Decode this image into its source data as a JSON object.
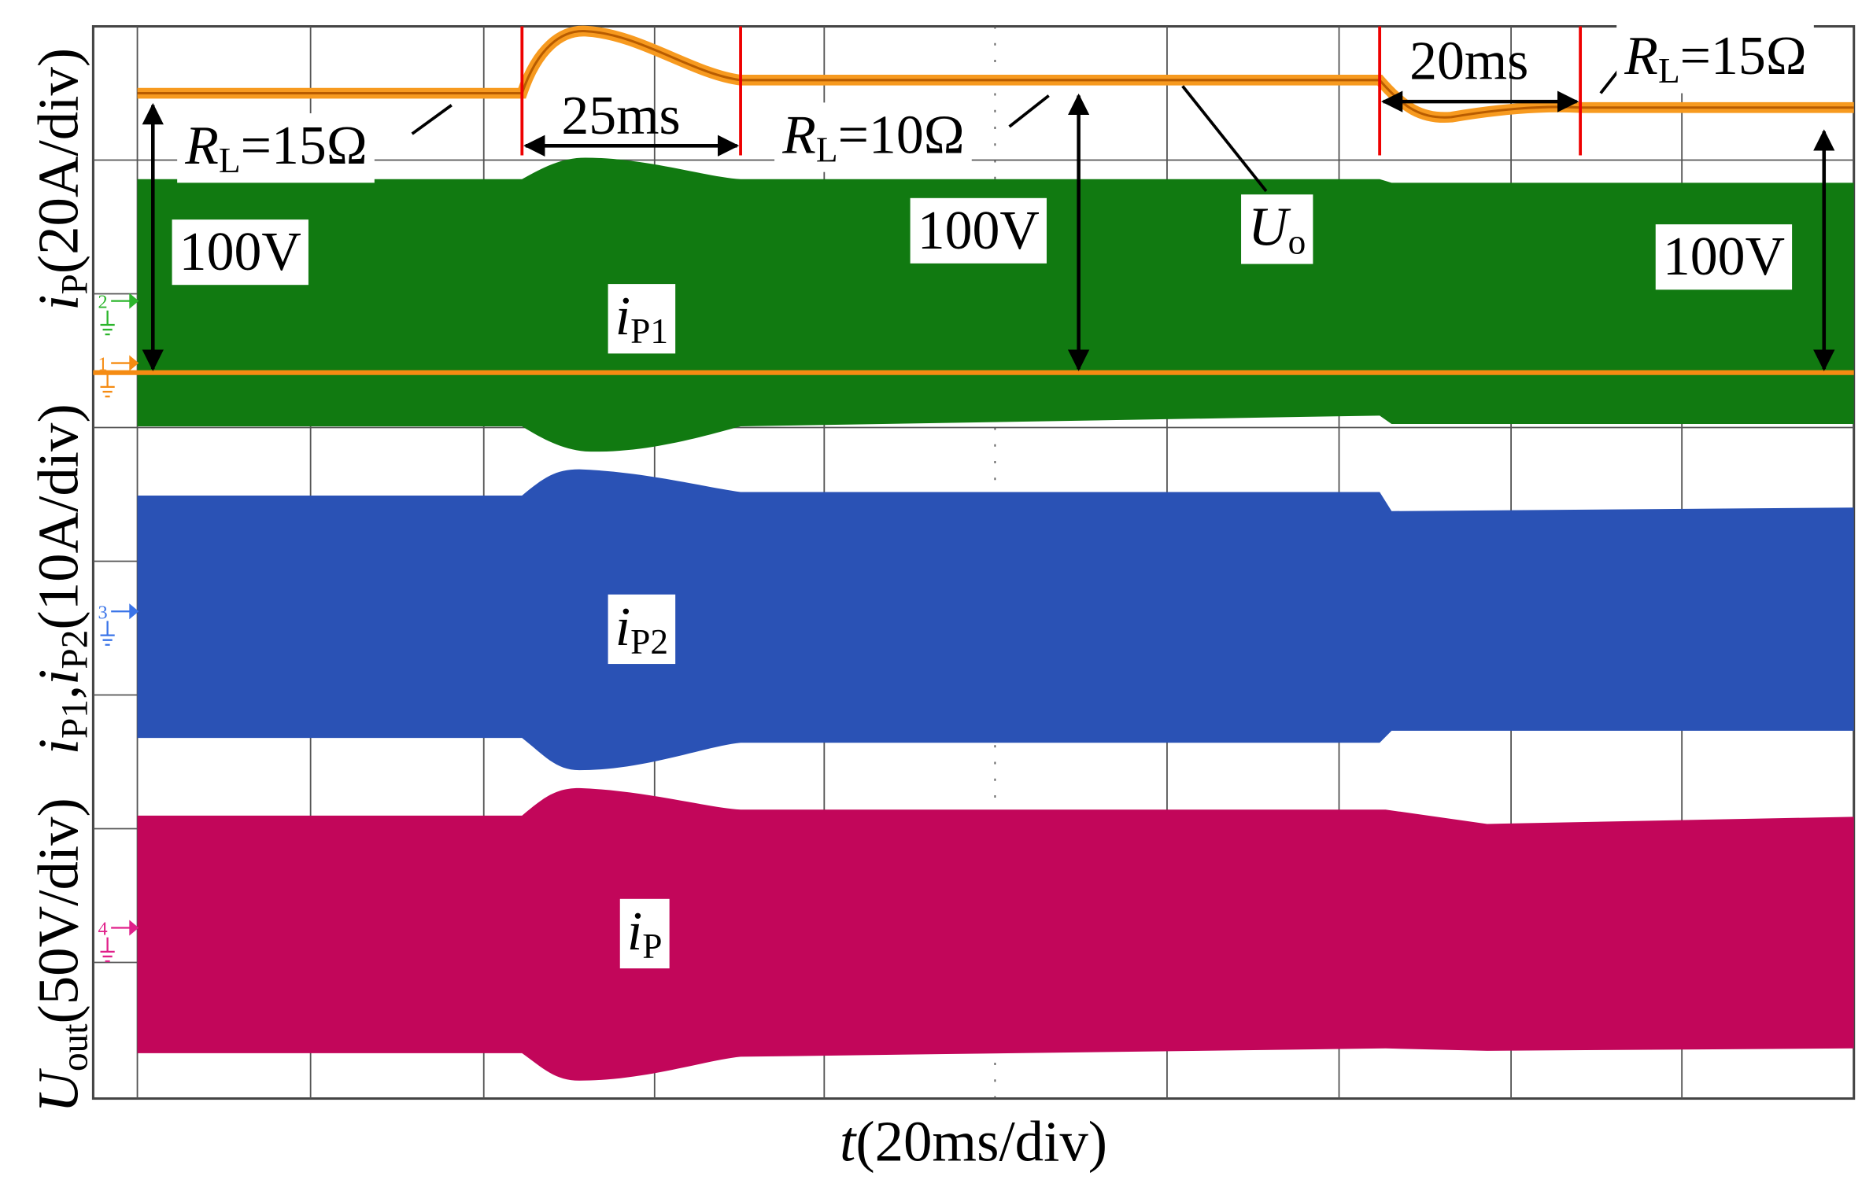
{
  "x_axis_label": [
    {
      "text": "t",
      "style": "italic"
    },
    {
      "text": "(20ms/div)"
    }
  ],
  "y_axis_labels": [
    [
      {
        "text": "U",
        "style": "italic"
      },
      {
        "text": "out",
        "style": "sub"
      },
      {
        "text": "(50V/div)"
      }
    ],
    [
      {
        "text": "i",
        "style": "italic"
      },
      {
        "text": "P1",
        "style": "sub"
      },
      {
        "text": ","
      },
      {
        "text": "i",
        "style": "italic"
      },
      {
        "text": "P2",
        "style": "sub"
      },
      {
        "text": "(10A/div)"
      }
    ],
    [
      {
        "text": "i",
        "style": "italic"
      },
      {
        "text": "P",
        "style": "sub"
      },
      {
        "text": "(20A/div)"
      }
    ]
  ],
  "channel_markers": [
    "2",
    "1",
    "3",
    "4"
  ],
  "annotations": [
    [
      {
        "text": "R",
        "style": "italic"
      },
      {
        "text": "L",
        "style": "sub"
      },
      {
        "text": "=15Ω"
      }
    ],
    [
      {
        "text": "25ms"
      }
    ],
    [
      {
        "text": "R",
        "style": "italic"
      },
      {
        "text": "L",
        "style": "sub"
      },
      {
        "text": "=10Ω"
      }
    ],
    [
      {
        "text": "20ms"
      }
    ],
    [
      {
        "text": "R",
        "style": "italic"
      },
      {
        "text": "L",
        "style": "sub"
      },
      {
        "text": "=15Ω"
      }
    ],
    [
      {
        "text": "100V"
      }
    ],
    [
      {
        "text": "100V"
      }
    ],
    [
      {
        "text": "100V"
      }
    ],
    [
      {
        "text": "U",
        "style": "italic"
      },
      {
        "text": "o",
        "style": "sub"
      }
    ],
    [
      {
        "text": "i",
        "style": "italic"
      },
      {
        "text": "P1",
        "style": "sub"
      }
    ],
    [
      {
        "text": "i",
        "style": "italic"
      },
      {
        "text": "P2",
        "style": "sub"
      }
    ],
    [
      {
        "text": "i",
        "style": "italic"
      },
      {
        "text": "P",
        "style": "sub"
      }
    ]
  ]
}
